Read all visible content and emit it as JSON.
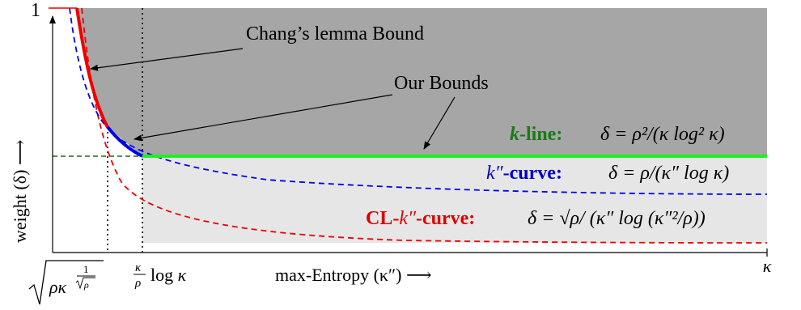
{
  "axes": {
    "y_top_tick": "1",
    "y_label": "weight (δ) ⟶",
    "x_label": "max-Entropy (κ″) ⟶",
    "x_end_tick": "κ",
    "x_tick_1": "√(ρκ^(1/√ρ))",
    "x_tick_2": "(κ/ρ) log κ"
  },
  "annotations": {
    "chang_label": "Chang’s lemma Bound",
    "our_bounds_label": "Our Bounds"
  },
  "legend_labels": {
    "k_line": {
      "name_var": "k",
      "name_rest": "-line:",
      "formula": "δ = ρ²/(κ log² κ)"
    },
    "k2_curve": {
      "name_var": "k″",
      "name_rest": "-curve:",
      "formula": "δ = ρ/(κ″ log κ)"
    },
    "cl_curve": {
      "name_pre": "CL-",
      "name_var": "k″",
      "name_rest": "-curve:",
      "formula": "δ = √ρ/ (κ″ log (κ″²/ρ))"
    }
  },
  "colors": {
    "dark_region": "#a6a6a6",
    "light_region": "#e6e6e6",
    "k_line": "#22ee22",
    "k2_curve": "#0000ee",
    "cl_curve": "#ee0000",
    "k_line_text": "#1a7a1a",
    "cl_text": "#dd0000",
    "k2_text": "#0000cc"
  }
}
